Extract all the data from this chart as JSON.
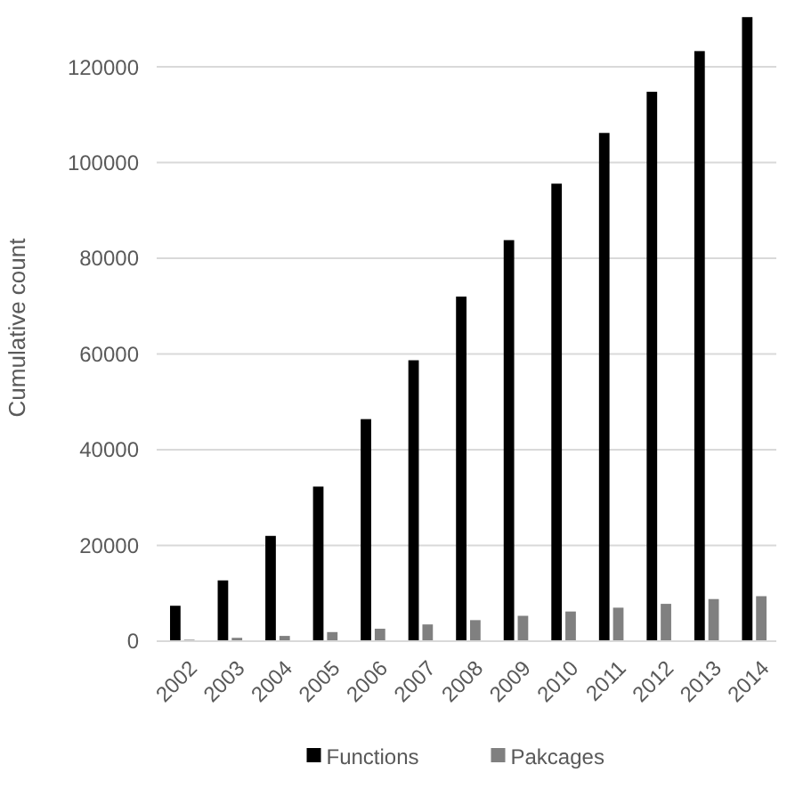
{
  "chart_data": {
    "type": "bar",
    "ylabel": "Cumulative count",
    "categories": [
      "2002",
      "2003",
      "2004",
      "2005",
      "2006",
      "2007",
      "2008",
      "2009",
      "2010",
      "2011",
      "2012",
      "2013",
      "2014"
    ],
    "series": [
      {
        "name": "Functions",
        "color": "#000000",
        "values": [
          7400,
          12700,
          22000,
          32300,
          46400,
          58700,
          72000,
          83800,
          95600,
          106200,
          114800,
          123300,
          130400
        ]
      },
      {
        "name": "Pakcages",
        "color": "#808080",
        "values": [
          300,
          700,
          1100,
          1900,
          2600,
          3500,
          4400,
          5300,
          6200,
          7000,
          7800,
          8800,
          9400
        ]
      }
    ],
    "ylim": [
      0,
      131000
    ],
    "yticks": [
      0,
      20000,
      40000,
      60000,
      80000,
      100000,
      120000
    ],
    "grid": "y",
    "legend": "bottom"
  }
}
